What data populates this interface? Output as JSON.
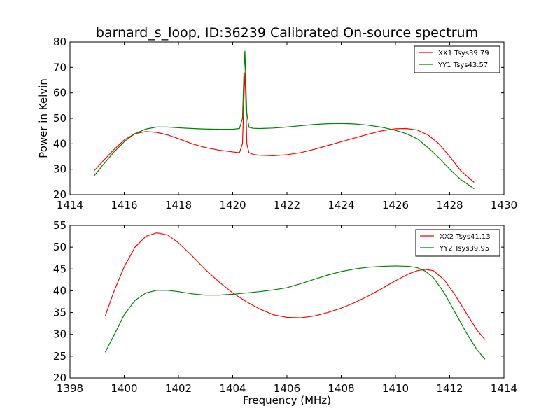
{
  "title": "barnard_s_loop, ID:36239 Calibrated On-source spectrum",
  "colors": {
    "red": "#ff0000",
    "green": "#008000",
    "axes": "#000000",
    "background": "#ffffff"
  },
  "chart_data": [
    {
      "type": "line",
      "panel": "top",
      "ylabel": "Power in Kelvin",
      "xlabel": "",
      "xlim": [
        1414,
        1430
      ],
      "ylim": [
        20,
        80
      ],
      "xticks": [
        1414,
        1416,
        1418,
        1420,
        1422,
        1424,
        1426,
        1428,
        1430
      ],
      "yticks": [
        20,
        30,
        40,
        50,
        60,
        70,
        80
      ],
      "grid": false,
      "legend": "top-right",
      "series": [
        {
          "name": "XX1 Tsys39.79",
          "color": "#ff0000",
          "x": [
            1414.9,
            1415.2,
            1415.6,
            1416.0,
            1416.4,
            1416.8,
            1417.2,
            1417.6,
            1418.0,
            1418.5,
            1419.0,
            1419.5,
            1420.0,
            1420.25,
            1420.36,
            1420.42,
            1420.45,
            1420.48,
            1420.52,
            1420.6,
            1420.75,
            1421.0,
            1421.5,
            1422.0,
            1422.5,
            1423.0,
            1423.5,
            1424.0,
            1424.5,
            1425.0,
            1425.5,
            1426.0,
            1426.4,
            1426.8,
            1427.2,
            1427.6,
            1428.0,
            1428.4,
            1428.9
          ],
          "y": [
            29.5,
            33.0,
            37.5,
            41.5,
            44.0,
            44.8,
            44.5,
            43.5,
            42.0,
            40.0,
            38.5,
            37.5,
            36.8,
            36.5,
            40.0,
            60.0,
            68.0,
            58.0,
            40.0,
            36.5,
            35.8,
            35.5,
            35.3,
            35.7,
            36.5,
            37.8,
            39.3,
            40.8,
            42.3,
            43.8,
            45.1,
            45.9,
            46.0,
            45.4,
            43.5,
            40.0,
            35.0,
            29.5,
            24.8
          ]
        },
        {
          "name": "YY1 Tsys43.57",
          "color": "#008000",
          "x": [
            1414.9,
            1415.2,
            1415.6,
            1416.0,
            1416.4,
            1416.8,
            1417.2,
            1417.6,
            1418.0,
            1418.5,
            1419.0,
            1419.5,
            1420.0,
            1420.25,
            1420.36,
            1420.42,
            1420.45,
            1420.48,
            1420.52,
            1420.6,
            1420.75,
            1421.0,
            1421.5,
            1422.0,
            1422.5,
            1423.0,
            1423.5,
            1424.0,
            1424.5,
            1425.0,
            1425.5,
            1426.0,
            1426.4,
            1426.8,
            1427.2,
            1427.6,
            1428.0,
            1428.4,
            1428.9
          ],
          "y": [
            27.5,
            31.5,
            36.5,
            40.8,
            44.0,
            45.8,
            46.6,
            46.6,
            46.3,
            46.0,
            45.8,
            45.7,
            45.7,
            46.0,
            50.0,
            70.0,
            76.5,
            65.0,
            52.0,
            46.5,
            46.1,
            46.0,
            46.2,
            46.6,
            47.1,
            47.6,
            47.9,
            48.0,
            47.8,
            47.3,
            46.5,
            45.3,
            44.0,
            42.0,
            38.5,
            34.5,
            30.0,
            26.0,
            22.3
          ]
        }
      ]
    },
    {
      "type": "line",
      "panel": "bottom",
      "ylabel": "",
      "xlabel": "Frequency (MHz)",
      "xlim": [
        1398,
        1414
      ],
      "ylim": [
        20,
        55
      ],
      "xticks": [
        1398,
        1400,
        1402,
        1404,
        1406,
        1408,
        1410,
        1412,
        1414
      ],
      "yticks": [
        20,
        25,
        30,
        35,
        40,
        45,
        50,
        55
      ],
      "grid": false,
      "legend": "top-right",
      "series": [
        {
          "name": "XX2 Tsys41.13",
          "color": "#ff0000",
          "x": [
            1399.3,
            1399.6,
            1400.0,
            1400.4,
            1400.8,
            1401.2,
            1401.6,
            1402.0,
            1402.5,
            1403.0,
            1403.5,
            1404.0,
            1404.5,
            1405.0,
            1405.5,
            1406.0,
            1406.5,
            1407.0,
            1407.5,
            1408.0,
            1408.5,
            1409.0,
            1409.5,
            1410.0,
            1410.5,
            1410.8,
            1411.1,
            1411.4,
            1411.8,
            1412.2,
            1412.6,
            1413.0,
            1413.3
          ],
          "y": [
            34.2,
            39.5,
            45.5,
            50.0,
            52.5,
            53.3,
            52.8,
            51.0,
            48.0,
            44.8,
            42.0,
            39.5,
            37.5,
            35.8,
            34.5,
            33.9,
            33.8,
            34.2,
            35.0,
            36.0,
            37.3,
            38.8,
            40.5,
            42.3,
            43.9,
            44.6,
            44.9,
            44.6,
            42.5,
            39.0,
            35.0,
            31.0,
            28.8
          ]
        },
        {
          "name": "YY2 Tsys39.95",
          "color": "#008000",
          "x": [
            1399.3,
            1399.6,
            1400.0,
            1400.4,
            1400.8,
            1401.2,
            1401.6,
            1402.0,
            1402.5,
            1403.0,
            1403.5,
            1404.0,
            1404.5,
            1405.0,
            1405.5,
            1406.0,
            1406.5,
            1407.0,
            1407.5,
            1408.0,
            1408.5,
            1409.0,
            1409.5,
            1410.0,
            1410.5,
            1410.8,
            1411.1,
            1411.4,
            1411.8,
            1412.2,
            1412.6,
            1413.0,
            1413.3
          ],
          "y": [
            25.9,
            29.5,
            34.5,
            37.8,
            39.5,
            40.1,
            40.1,
            39.8,
            39.3,
            39.0,
            39.0,
            39.2,
            39.5,
            39.8,
            40.2,
            40.7,
            41.6,
            42.6,
            43.6,
            44.4,
            45.0,
            45.4,
            45.6,
            45.7,
            45.6,
            45.3,
            44.5,
            43.0,
            39.5,
            35.0,
            30.5,
            26.5,
            24.3
          ]
        }
      ]
    }
  ]
}
